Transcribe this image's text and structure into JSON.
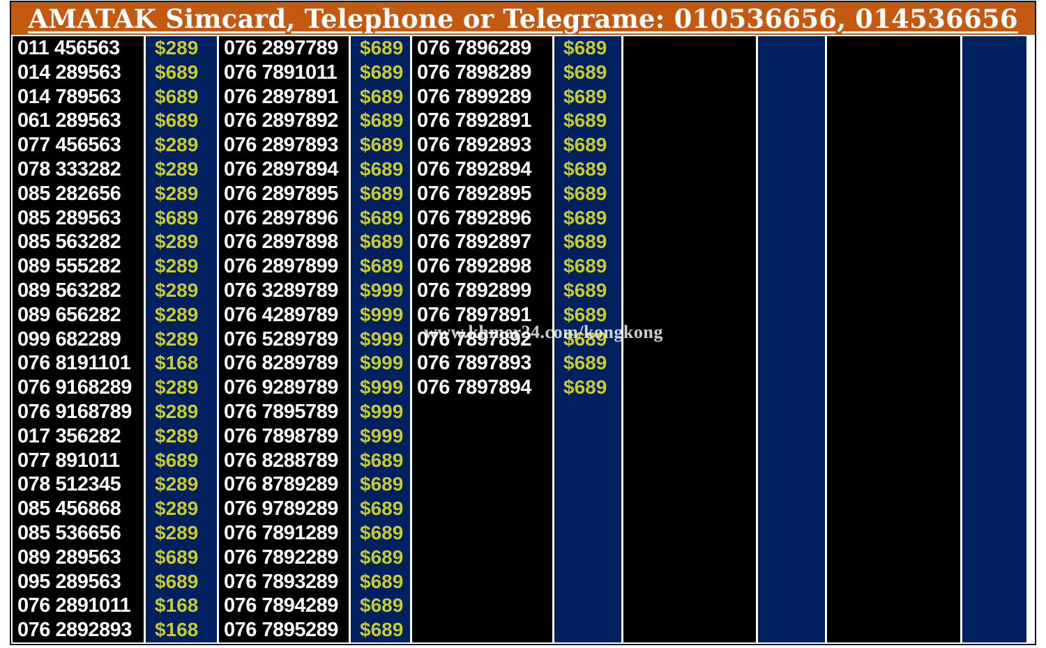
{
  "header": {
    "title": "AMATAK Simcard, Telephone or Telegrame: 010536656, 014536656"
  },
  "watermark": "www.khmer24.com/kongkong",
  "colors": {
    "header_bg": "#C45911",
    "number_bg": "#000000",
    "price_bg": "#002060",
    "number_text": "#FFFFFF",
    "price_text": "#C9CB28",
    "header_text": "#FFFFFF",
    "page_bg": "#FFFFFF"
  },
  "columns": [
    {
      "entries": [
        {
          "number": "011 456563",
          "price": "$289"
        },
        {
          "number": "014 289563",
          "price": "$689"
        },
        {
          "number": "014 789563",
          "price": "$689"
        },
        {
          "number": "061 289563",
          "price": "$689"
        },
        {
          "number": "077 456563",
          "price": "$289"
        },
        {
          "number": "078 333282",
          "price": "$289"
        },
        {
          "number": "085 282656",
          "price": "$289"
        },
        {
          "number": "085 289563",
          "price": "$689"
        },
        {
          "number": "085 563282",
          "price": "$289"
        },
        {
          "number": "089 555282",
          "price": "$289"
        },
        {
          "number": "089 563282",
          "price": "$289"
        },
        {
          "number": "089 656282",
          "price": "$289"
        },
        {
          "number": "099 682289",
          "price": "$289"
        },
        {
          "number": "076 8191101",
          "price": "$168"
        },
        {
          "number": "076 9168289",
          "price": "$289"
        },
        {
          "number": "076 9168789",
          "price": "$289"
        },
        {
          "number": "017 356282",
          "price": "$289"
        },
        {
          "number": "077 891011",
          "price": "$689"
        },
        {
          "number": "078 512345",
          "price": "$289"
        },
        {
          "number": "085 456868",
          "price": "$289"
        },
        {
          "number": "085 536656",
          "price": "$289"
        },
        {
          "number": "089 289563",
          "price": "$689"
        },
        {
          "number": "095 289563",
          "price": "$689"
        },
        {
          "number": "076 2891011",
          "price": "$168"
        },
        {
          "number": "076 2892893",
          "price": "$168"
        }
      ]
    },
    {
      "entries": [
        {
          "number": "076 2897789",
          "price": "$689"
        },
        {
          "number": "076 7891011",
          "price": "$689"
        },
        {
          "number": "076 2897891",
          "price": "$689"
        },
        {
          "number": "076 2897892",
          "price": "$689"
        },
        {
          "number": "076 2897893",
          "price": "$689"
        },
        {
          "number": "076 2897894",
          "price": "$689"
        },
        {
          "number": "076 2897895",
          "price": "$689"
        },
        {
          "number": "076 2897896",
          "price": "$689"
        },
        {
          "number": "076 2897898",
          "price": "$689"
        },
        {
          "number": "076 2897899",
          "price": "$689"
        },
        {
          "number": "076 3289789",
          "price": "$999"
        },
        {
          "number": "076 4289789",
          "price": "$999"
        },
        {
          "number": "076 5289789",
          "price": "$999"
        },
        {
          "number": "076 8289789",
          "price": "$999"
        },
        {
          "number": "076 9289789",
          "price": "$999"
        },
        {
          "number": "076 7895789",
          "price": "$999"
        },
        {
          "number": "076 7898789",
          "price": "$999"
        },
        {
          "number": "076 8288789",
          "price": "$689"
        },
        {
          "number": "076 8789289",
          "price": "$689"
        },
        {
          "number": "076 9789289",
          "price": "$689"
        },
        {
          "number": "076 7891289",
          "price": "$689"
        },
        {
          "number": "076 7892289",
          "price": "$689"
        },
        {
          "number": "076 7893289",
          "price": "$689"
        },
        {
          "number": "076 7894289",
          "price": "$689"
        },
        {
          "number": "076 7895289",
          "price": "$689"
        }
      ]
    },
    {
      "entries": [
        {
          "number": "076 7896289",
          "price": "$689"
        },
        {
          "number": "076 7898289",
          "price": "$689"
        },
        {
          "number": "076 7899289",
          "price": "$689"
        },
        {
          "number": "076 7892891",
          "price": "$689"
        },
        {
          "number": "076 7892893",
          "price": "$689"
        },
        {
          "number": "076 7892894",
          "price": "$689"
        },
        {
          "number": "076 7892895",
          "price": "$689"
        },
        {
          "number": "076 7892896",
          "price": "$689"
        },
        {
          "number": "076 7892897",
          "price": "$689"
        },
        {
          "number": "076 7892898",
          "price": "$689"
        },
        {
          "number": "076 7892899",
          "price": "$689"
        },
        {
          "number": "076 7897891",
          "price": "$689"
        },
        {
          "number": "076 7897892",
          "price": "$689"
        },
        {
          "number": "076 7897893",
          "price": "$689"
        },
        {
          "number": "076 7897894",
          "price": "$689"
        }
      ]
    },
    {
      "entries": []
    },
    {
      "entries": []
    }
  ]
}
